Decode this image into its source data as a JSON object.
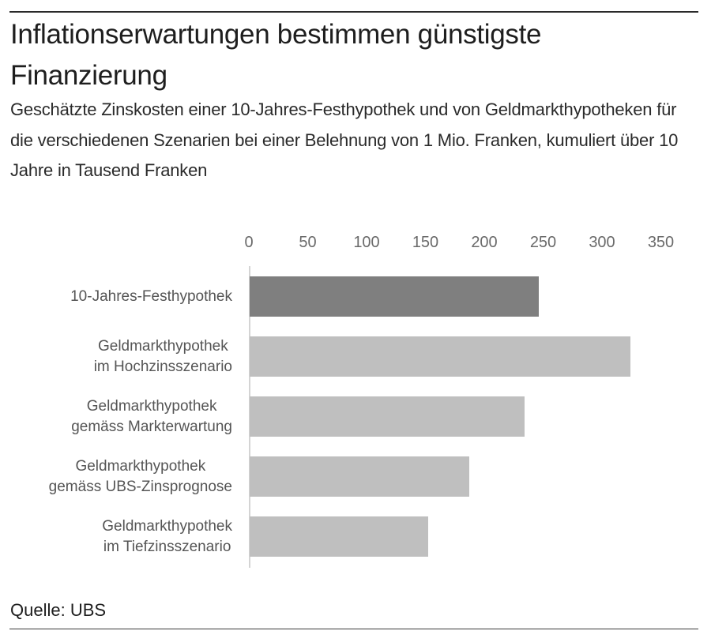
{
  "header": {
    "title": "Inflationserwartungen bestimmen günstigste Finanzierung",
    "subtitle": "Geschätzte Zinskosten einer 10-Jahres-Festhypothek und von Geldmarkthypotheken für die verschiedenen Szenarien bei einer Belehnung von 1 Mio. Franken, kumuliert über 10 Jahre in Tausend Franken"
  },
  "axis": {
    "ticks": [
      "0",
      "50",
      "100",
      "150",
      "200",
      "250",
      "300",
      "350"
    ]
  },
  "categories": [
    {
      "label": "10-Jahres-Festhypothek",
      "value": 246,
      "color": "#7f7f7f"
    },
    {
      "label": "Geldmarkthypothek\nim Hochzinsszenario",
      "value": 324,
      "color": "#bfbfbf"
    },
    {
      "label": "Geldmarkthypothek\ngemäss Markterwartung",
      "value": 234,
      "color": "#bfbfbf"
    },
    {
      "label": "Geldmarkthypothek\ngemäss UBS-Zinsprognose",
      "value": 187,
      "color": "#bfbfbf"
    },
    {
      "label": "Geldmarkthypothek\nim Tiefzinsszenario",
      "value": 152,
      "color": "#bfbfbf"
    }
  ],
  "footer": {
    "source": "Quelle: UBS"
  },
  "colors": {
    "highlight_bar": "#7f7f7f",
    "default_bar": "#bfbfbf",
    "axis_line": "#d4d4d4",
    "rule": "#2a2a2a"
  },
  "chart_data": {
    "type": "bar",
    "orientation": "horizontal",
    "title": "Inflationserwartungen bestimmen günstigste Finanzierung",
    "subtitle": "Geschätzte Zinskosten einer 10-Jahres-Festhypothek und von Geldmarkthypotheken für die verschiedenen Szenarien bei einer Belehnung von 1 Mio. Franken, kumuliert über 10 Jahre in Tausend Franken",
    "categories": [
      "10-Jahres-Festhypothek",
      "Geldmarkthypothek im Hochzinsszenario",
      "Geldmarkthypothek gemäss Markterwartung",
      "Geldmarkthypothek gemäss UBS-Zinsprognose",
      "Geldmarkthypothek im Tiefzinsszenario"
    ],
    "values": [
      246,
      324,
      234,
      187,
      152
    ],
    "xlabel": "",
    "ylabel": "",
    "xlim": [
      0,
      350
    ],
    "xticks": [
      0,
      50,
      100,
      150,
      200,
      250,
      300,
      350
    ],
    "x_axis_position": "top",
    "grid": false,
    "legend": null,
    "source": "Quelle: UBS",
    "units": "Tausend Franken"
  }
}
